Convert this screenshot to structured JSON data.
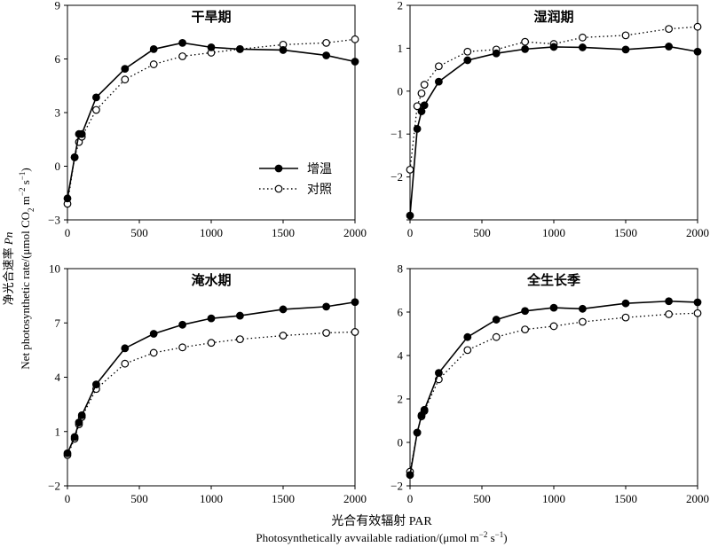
{
  "figure": {
    "ylabel_cn": "净光合速率 ",
    "ylabel_cn_italic": "Pn",
    "ylabel_en_pre": "Net photosynthetic rate/(μmol CO",
    "ylabel_en_sub2": "2",
    "ylabel_en_mid": " m",
    "ylabel_en_sup1": "−2",
    "ylabel_en_mid2": " s",
    "ylabel_en_sup2": "−1",
    "ylabel_en_post": ")",
    "xlabel_cn": "光合有效辐射 PAR",
    "xlabel_en_pre": "Photosynthetically avvailable radiation/(μmol m",
    "xlabel_en_sup1": "−2",
    "xlabel_en_mid": " s",
    "xlabel_en_sup2": "−1",
    "xlabel_en_post": ")"
  },
  "legend": {
    "items": [
      {
        "label": "增温",
        "marker": "filled",
        "line": "solid"
      },
      {
        "label": "对照",
        "marker": "open",
        "line": "dotted"
      }
    ]
  },
  "chart_data": [
    {
      "type": "line",
      "title": "干旱期",
      "x": [
        0,
        50,
        80,
        100,
        200,
        400,
        600,
        800,
        1000,
        1200,
        1500,
        1800,
        2000
      ],
      "xlim": [
        0,
        2000
      ],
      "ylim": [
        -3,
        9
      ],
      "yticks": [
        -3,
        0,
        3,
        6,
        9
      ],
      "xticks": [
        0,
        500,
        1000,
        1500,
        2000
      ],
      "series": [
        {
          "name": "增温",
          "values": [
            -1.8,
            0.5,
            1.8,
            1.8,
            3.85,
            5.45,
            6.55,
            6.9,
            6.65,
            6.55,
            6.5,
            6.2,
            5.85
          ]
        },
        {
          "name": "对照",
          "values": [
            -2.1,
            0.5,
            1.35,
            1.65,
            3.15,
            4.85,
            5.7,
            6.15,
            6.35,
            6.55,
            6.8,
            6.9,
            7.1
          ]
        }
      ]
    },
    {
      "type": "line",
      "title": "湿润期",
      "x": [
        0,
        50,
        80,
        100,
        200,
        400,
        600,
        800,
        1000,
        1200,
        1500,
        1800,
        2000
      ],
      "xlim": [
        0,
        2000
      ],
      "ylim": [
        -3,
        2
      ],
      "yticks": [
        -3,
        -2,
        -1,
        0,
        1,
        2
      ],
      "yticklabels": [
        "",
        "−2",
        "−1",
        "0",
        "1",
        "2"
      ],
      "xticks": [
        0,
        500,
        1000,
        1500,
        2000
      ],
      "series": [
        {
          "name": "增温",
          "values": [
            -2.9,
            -0.88,
            -0.47,
            -0.33,
            0.22,
            0.72,
            0.88,
            0.98,
            1.03,
            1.02,
            0.97,
            1.04,
            0.92
          ]
        },
        {
          "name": "对照",
          "values": [
            -1.83,
            -0.35,
            -0.05,
            0.15,
            0.58,
            0.92,
            0.97,
            1.15,
            1.1,
            1.25,
            1.3,
            1.45,
            1.5
          ]
        }
      ]
    },
    {
      "type": "line",
      "title": "淹水期",
      "x": [
        0,
        50,
        80,
        100,
        200,
        400,
        600,
        800,
        1000,
        1200,
        1500,
        1800,
        2000
      ],
      "xlim": [
        0,
        2000
      ],
      "ylim": [
        -2,
        10
      ],
      "yticks": [
        -2,
        1,
        4,
        7,
        10
      ],
      "xticks": [
        0,
        500,
        1000,
        1500,
        2000
      ],
      "series": [
        {
          "name": "增温",
          "values": [
            -0.2,
            0.7,
            1.5,
            1.9,
            3.6,
            5.6,
            6.4,
            6.9,
            7.25,
            7.4,
            7.75,
            7.9,
            8.15
          ]
        },
        {
          "name": "对照",
          "values": [
            -0.3,
            0.6,
            1.4,
            1.8,
            3.35,
            4.75,
            5.35,
            5.65,
            5.9,
            6.1,
            6.3,
            6.45,
            6.5
          ]
        }
      ]
    },
    {
      "type": "line",
      "title": "全生长季",
      "x": [
        0,
        50,
        80,
        100,
        200,
        400,
        600,
        800,
        1000,
        1200,
        1500,
        1800,
        2000
      ],
      "xlim": [
        0,
        2000
      ],
      "ylim": [
        -2,
        8
      ],
      "yticks": [
        -2,
        0,
        2,
        4,
        6,
        8
      ],
      "xticks": [
        0,
        500,
        1000,
        1500,
        2000
      ],
      "series": [
        {
          "name": "增温",
          "values": [
            -1.5,
            0.45,
            1.25,
            1.5,
            3.2,
            4.85,
            5.65,
            6.05,
            6.2,
            6.15,
            6.4,
            6.5,
            6.45
          ]
        },
        {
          "name": "对照",
          "values": [
            -1.35,
            0.45,
            1.2,
            1.45,
            2.9,
            4.25,
            4.85,
            5.2,
            5.35,
            5.55,
            5.75,
            5.9,
            5.95
          ]
        }
      ]
    }
  ]
}
